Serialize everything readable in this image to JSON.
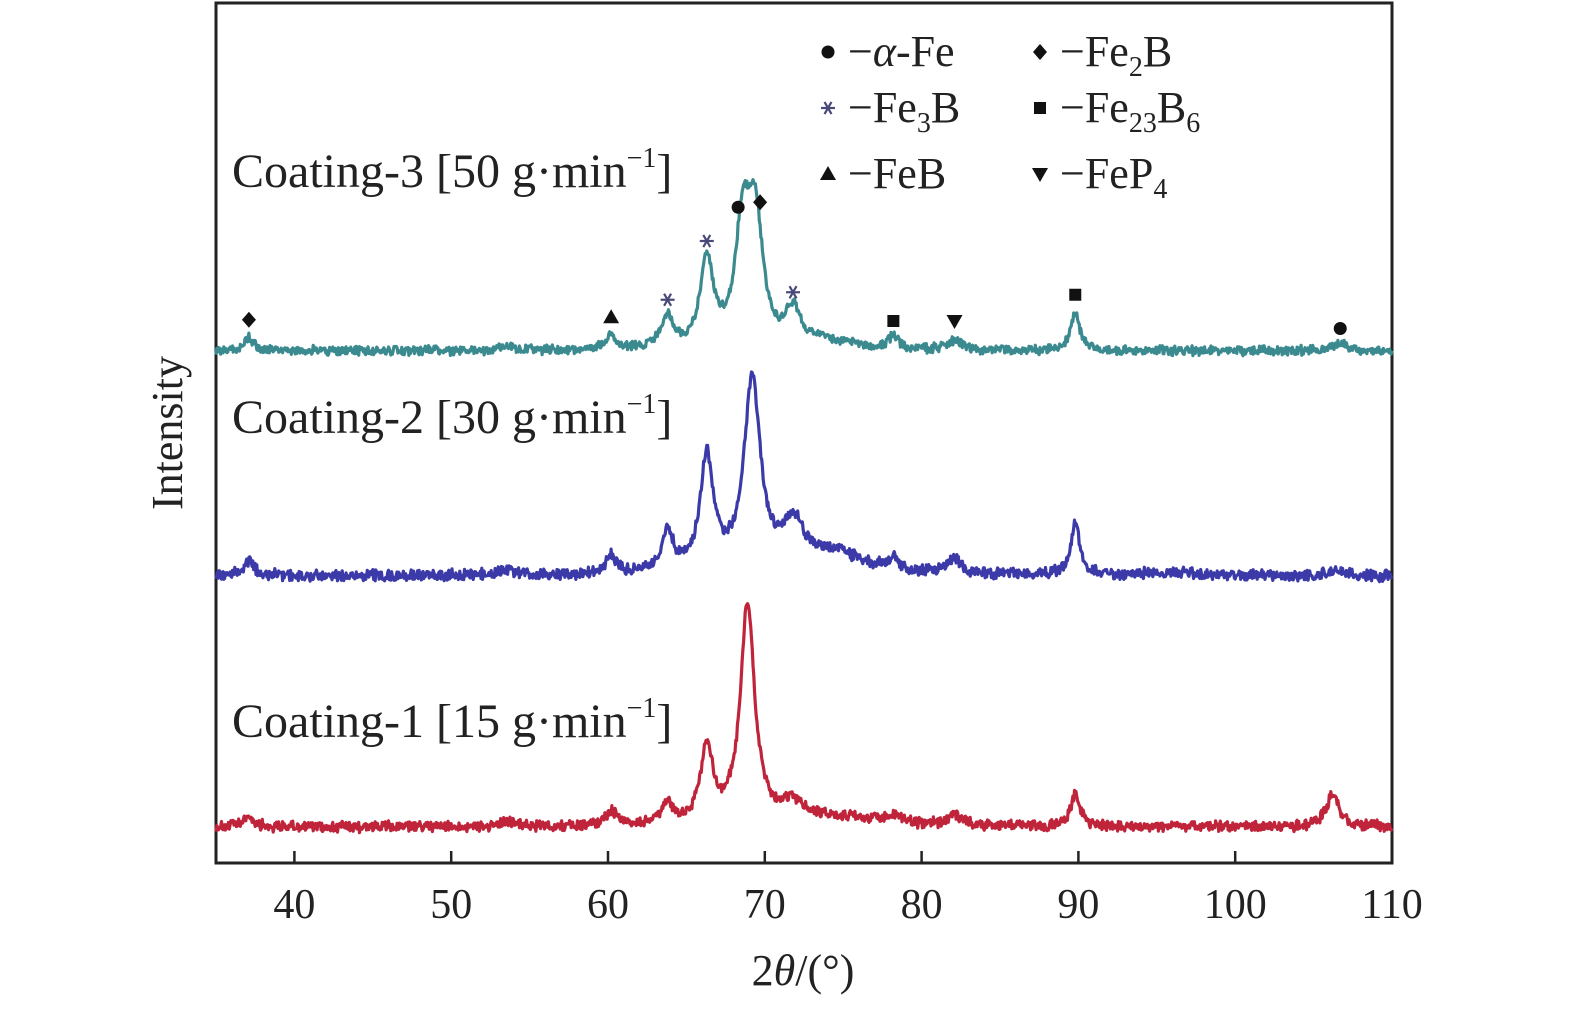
{
  "chart_data": {
    "type": "line",
    "xlabel": "2θ/(°)",
    "xlabel_parts": {
      "pre": "2",
      "theta": "θ",
      "post": "/(°)"
    },
    "ylabel": "Intensity",
    "xlim": [
      35,
      110
    ],
    "x_ticks": [
      40,
      50,
      60,
      70,
      80,
      90,
      100,
      110
    ],
    "y_ticks": "none",
    "grid": false,
    "colors": {
      "coating1": "#c0243a",
      "coating2": "#3b3aa8",
      "coating3": "#3a8a8f",
      "frame": "#222222",
      "marker": "#111111"
    },
    "series": [
      {
        "name": "Coating-1 [15 g·min⁻¹]",
        "label_main": "Coating-1 [15 g·min",
        "label_sup": "−1",
        "label_end": "]",
        "color_key": "coating1",
        "baseline": 0,
        "peaks": [
          [
            37.1,
            0.4,
            0.35
          ],
          [
            53.5,
            0.55,
            0.15
          ],
          [
            60.2,
            0.5,
            0.5
          ],
          [
            63.8,
            0.4,
            0.7
          ],
          [
            66.3,
            0.5,
            2.6
          ],
          [
            68.9,
            0.55,
            7.6
          ],
          [
            71.8,
            1.0,
            0.6
          ],
          [
            75,
            3,
            0.3
          ],
          [
            78.2,
            0.4,
            0.3
          ],
          [
            82.1,
            0.5,
            0.4
          ],
          [
            89.8,
            0.35,
            1.1
          ],
          [
            106.2,
            0.5,
            1.1
          ]
        ]
      },
      {
        "name": "Coating-2 [30 g·min⁻¹]",
        "label_main": "Coating-2 [30 g·min",
        "label_sup": "−1",
        "label_end": "]",
        "color_key": "coating2",
        "baseline": 0,
        "peaks": [
          [
            37.1,
            0.4,
            0.5
          ],
          [
            53.5,
            0.55,
            0.2
          ],
          [
            60.2,
            0.4,
            0.6
          ],
          [
            63.8,
            0.45,
            1.3
          ],
          [
            66.3,
            0.5,
            3.8
          ],
          [
            69.2,
            0.65,
            6.3
          ],
          [
            71.8,
            0.8,
            1.5
          ],
          [
            74.5,
            2.2,
            0.7
          ],
          [
            78.2,
            0.4,
            0.4
          ],
          [
            82.1,
            0.5,
            0.5
          ],
          [
            89.8,
            0.35,
            1.7
          ],
          [
            96,
            2,
            0.1
          ],
          [
            106.5,
            0.5,
            0.2
          ]
        ]
      },
      {
        "name": "Coating-3 [50 g·min⁻¹]",
        "label_main": "Coating-3 [50 g·min",
        "label_sup": "−1",
        "label_end": "]",
        "color_key": "coating3",
        "baseline": 0,
        "peaks": [
          [
            37.1,
            0.4,
            0.5
          ],
          [
            53.5,
            0.55,
            0.2
          ],
          [
            60.2,
            0.4,
            0.6
          ],
          [
            63.8,
            0.45,
            1.3
          ],
          [
            66.3,
            0.5,
            3.5
          ],
          [
            68.6,
            0.55,
            4.8
          ],
          [
            69.4,
            0.55,
            4.9
          ],
          [
            71.8,
            0.6,
            1.4
          ],
          [
            74,
            2.2,
            0.3
          ],
          [
            78.2,
            0.4,
            0.5
          ],
          [
            82.1,
            0.5,
            0.4
          ],
          [
            89.8,
            0.35,
            1.5
          ],
          [
            106.7,
            0.5,
            0.3
          ]
        ]
      }
    ],
    "annotations": [
      {
        "x": 37.1,
        "y": 1.25,
        "marker": "diamond"
      },
      {
        "x": 60.2,
        "y": 1.35,
        "marker": "triangle-up"
      },
      {
        "x": 63.8,
        "y": 2.05,
        "marker": "star"
      },
      {
        "x": 66.3,
        "y": 4.4,
        "marker": "star"
      },
      {
        "x": 68.3,
        "y": 5.75,
        "marker": "circle"
      },
      {
        "x": 69.7,
        "y": 5.95,
        "marker": "diamond"
      },
      {
        "x": 71.8,
        "y": 2.35,
        "marker": "star"
      },
      {
        "x": 78.2,
        "y": 1.2,
        "marker": "square"
      },
      {
        "x": 82.1,
        "y": 1.2,
        "marker": "triangle-down"
      },
      {
        "x": 89.8,
        "y": 2.25,
        "marker": "square"
      },
      {
        "x": 106.7,
        "y": 0.9,
        "marker": "circle"
      }
    ],
    "legend": {
      "placement": "top-right",
      "entries": [
        {
          "marker": "circle",
          "prefix": "−",
          "alpha": "α",
          "text": "-Fe",
          "sub": "",
          "after": "",
          "sub2": ""
        },
        {
          "marker": "diamond",
          "prefix": "−",
          "alpha": "",
          "text": "Fe",
          "sub": "2",
          "after": "B",
          "sub2": ""
        },
        {
          "marker": "star",
          "prefix": "−",
          "alpha": "",
          "text": "Fe",
          "sub": "3",
          "after": "B",
          "sub2": ""
        },
        {
          "marker": "square",
          "prefix": "−",
          "alpha": "",
          "text": "Fe",
          "sub": "23",
          "after": "B",
          "sub2": "6"
        },
        {
          "marker": "triangle-up",
          "prefix": "−",
          "alpha": "",
          "text": "FeB",
          "sub": "",
          "after": "",
          "sub2": ""
        },
        {
          "marker": "triangle-down",
          "prefix": "−",
          "alpha": "",
          "text": "FeP",
          "sub": "4",
          "after": "",
          "sub2": ""
        }
      ]
    }
  }
}
